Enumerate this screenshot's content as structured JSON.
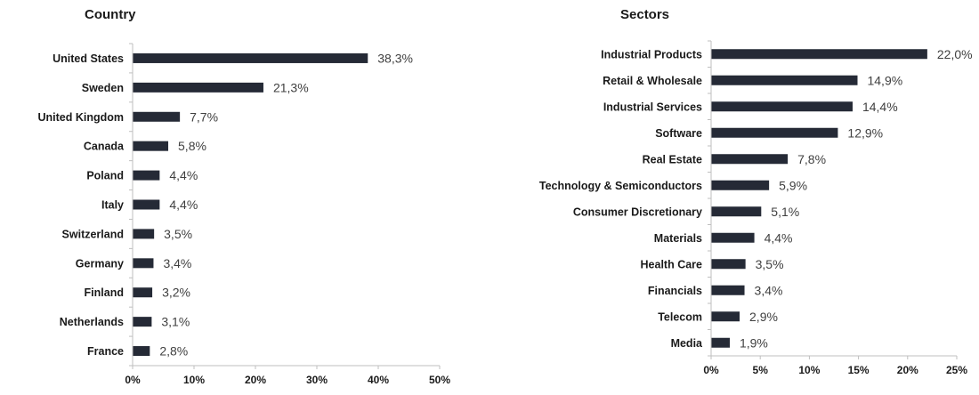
{
  "chart_data": [
    {
      "type": "bar",
      "orientation": "horizontal",
      "title": "Country",
      "categories": [
        "United States",
        "Sweden",
        "United Kingdom",
        "Canada",
        "Poland",
        "Italy",
        "Switzerland",
        "Germany",
        "Finland",
        "Netherlands",
        "France"
      ],
      "values": [
        38.3,
        21.3,
        7.7,
        5.8,
        4.4,
        4.4,
        3.5,
        3.4,
        3.2,
        3.1,
        2.8
      ],
      "value_labels": [
        "38,3%",
        "21,3%",
        "7,7%",
        "5,8%",
        "4,4%",
        "4,4%",
        "3,5%",
        "3,4%",
        "3,2%",
        "3,1%",
        "2,8%"
      ],
      "xlim": [
        0,
        50
      ],
      "ticks": [
        0,
        10,
        20,
        30,
        40,
        50
      ],
      "tick_labels": [
        "0%",
        "10%",
        "20%",
        "30%",
        "40%",
        "50%"
      ],
      "xlabel": "",
      "ylabel": "",
      "grid": false,
      "bar_color": "#252a36"
    },
    {
      "type": "bar",
      "orientation": "horizontal",
      "title": "Sectors",
      "categories": [
        "Industrial Products",
        "Retail & Wholesale",
        "Industrial Services",
        "Software",
        "Real Estate",
        "Technology & Semiconductors",
        "Consumer Discretionary",
        "Materials",
        "Health Care",
        "Financials",
        "Telecom",
        "Media"
      ],
      "values": [
        22.0,
        14.9,
        14.4,
        12.9,
        7.8,
        5.9,
        5.1,
        4.4,
        3.5,
        3.4,
        2.9,
        1.9
      ],
      "value_labels": [
        "22,0%",
        "14,9%",
        "14,4%",
        "12,9%",
        "7,8%",
        "5,9%",
        "5,1%",
        "4,4%",
        "3,5%",
        "3,4%",
        "2,9%",
        "1,9%"
      ],
      "xlim": [
        0,
        25
      ],
      "ticks": [
        0,
        5,
        10,
        15,
        20,
        25
      ],
      "tick_labels": [
        "0%",
        "5%",
        "10%",
        "15%",
        "20%",
        "25%"
      ],
      "xlabel": "",
      "ylabel": "",
      "grid": false,
      "bar_color": "#252a36"
    }
  ]
}
